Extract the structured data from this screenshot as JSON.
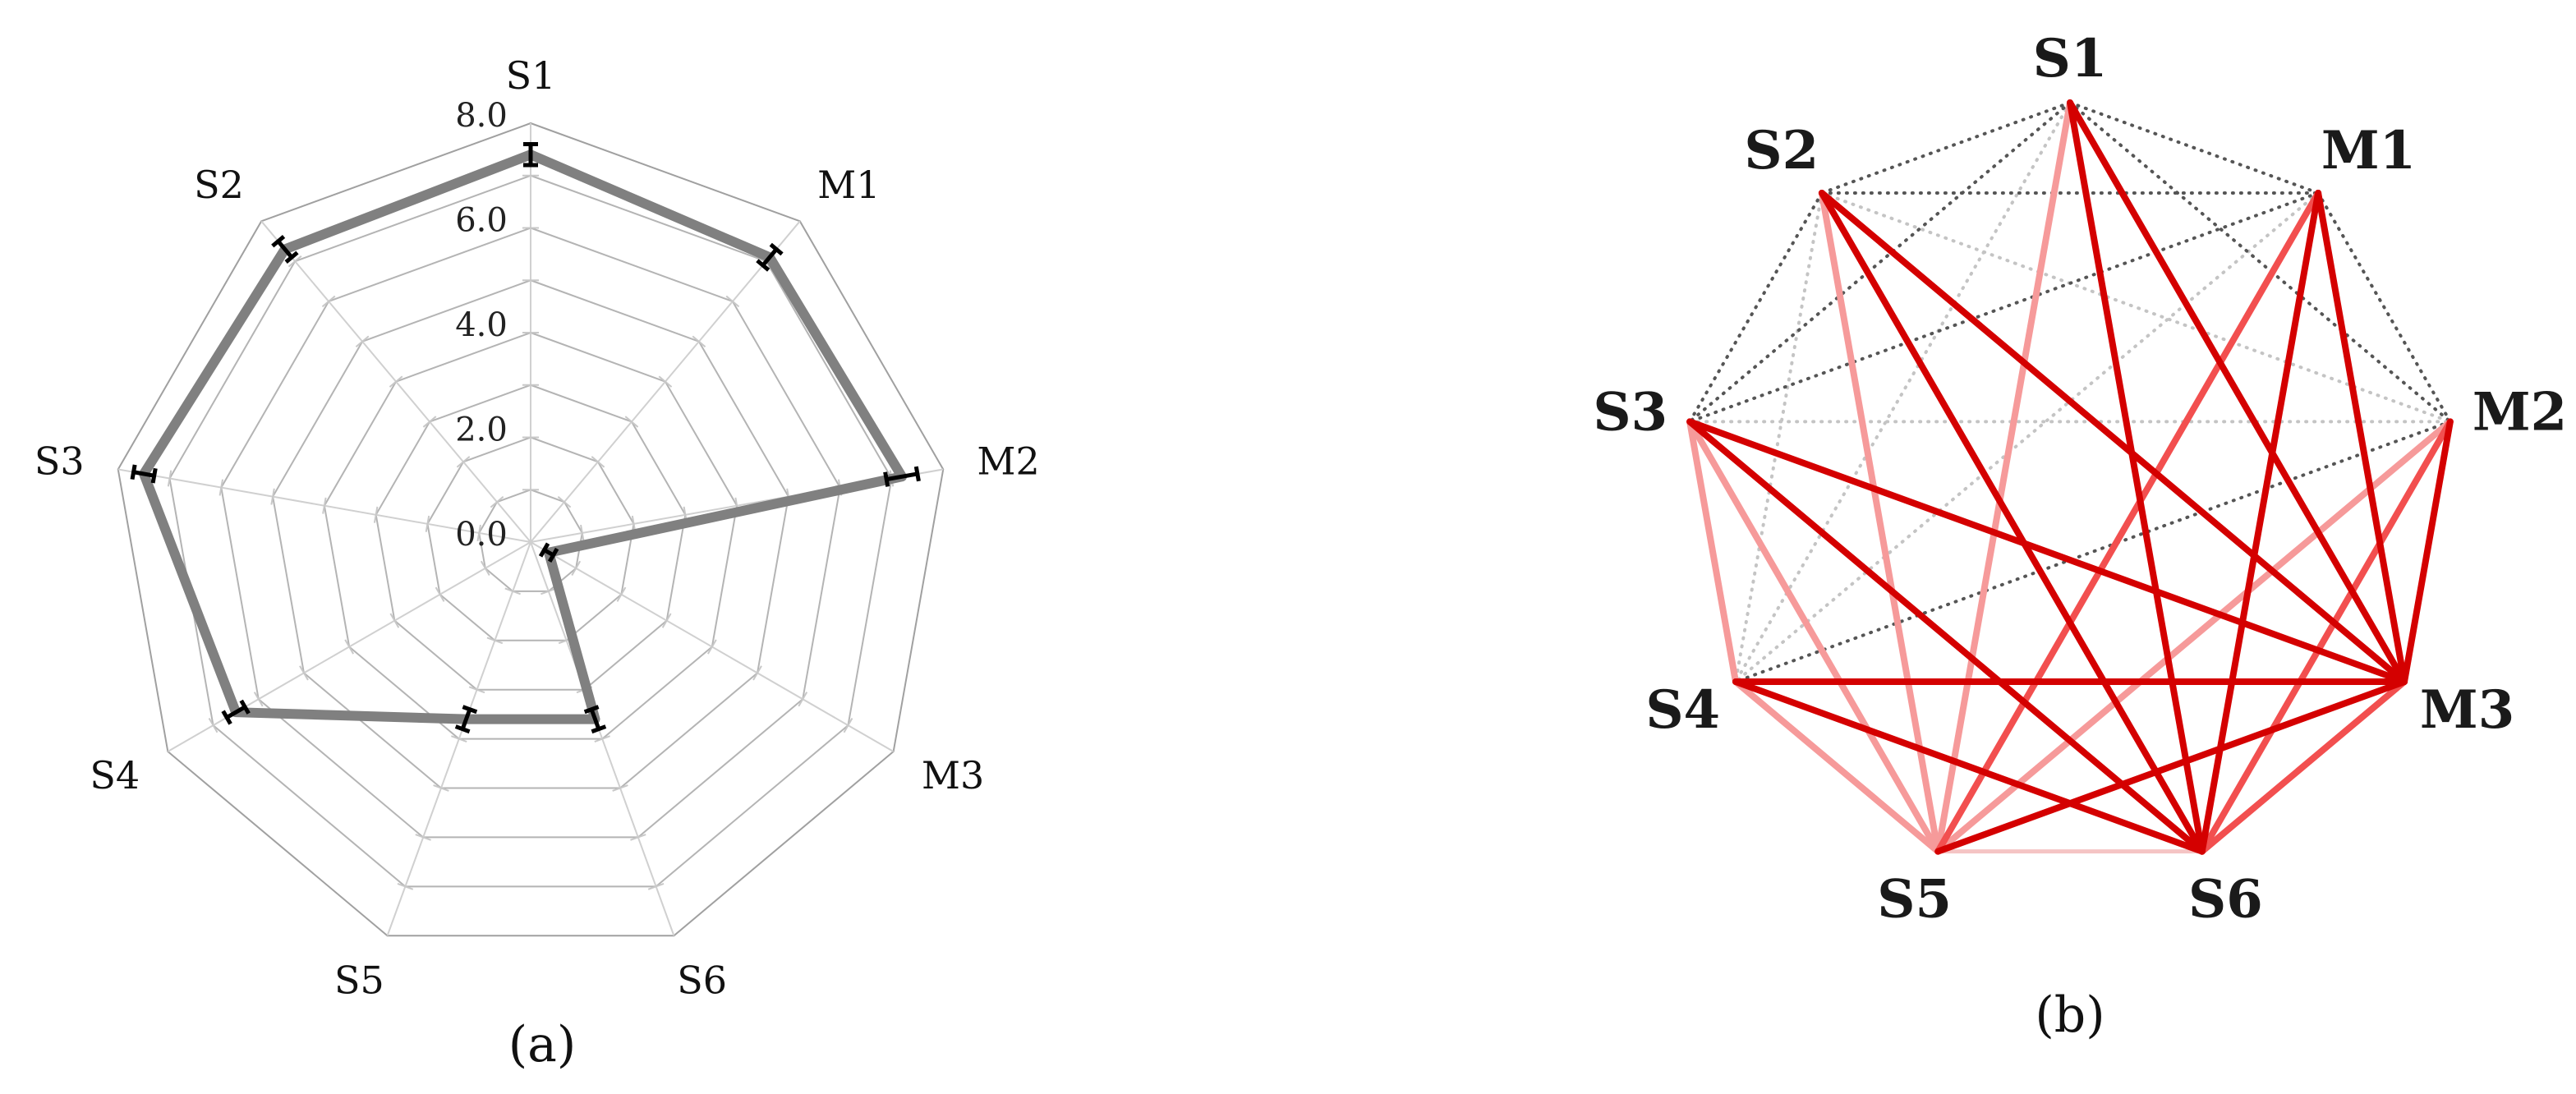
{
  "chart_data": [
    {
      "type": "radar",
      "panel_label": "(a)",
      "axes": [
        "S1",
        "M1",
        "M2",
        "M3",
        "S6",
        "S5",
        "S4",
        "S3",
        "S2"
      ],
      "ylim": [
        0,
        8
      ],
      "ticks": [
        "0.0",
        "2.0",
        "4.0",
        "6.0",
        "8.0"
      ],
      "grid": true,
      "series": [
        {
          "values": [
            7.4,
            7.1,
            7.2,
            0.4,
            3.6,
            3.6,
            6.5,
            7.5,
            7.3
          ],
          "error": [
            0.2,
            0.2,
            0.3,
            0.1,
            0.2,
            0.2,
            0.2,
            0.2,
            0.2
          ],
          "color": "#808080"
        }
      ]
    },
    {
      "type": "network",
      "panel_label": "(b)",
      "nodes": [
        "S1",
        "M1",
        "M2",
        "M3",
        "S6",
        "S5",
        "S4",
        "S3",
        "S2"
      ],
      "edge_colors": {
        "strong": "#d40000",
        "medium": "#f24f4f",
        "weak": "#f69a9a",
        "faint": "#f5c4c4",
        "dotted_dark": "#555555",
        "dotted_light": "#c4c4c4"
      },
      "edges": [
        {
          "from": "S1",
          "to": "M3",
          "style": "strong"
        },
        {
          "from": "S1",
          "to": "S6",
          "style": "strong"
        },
        {
          "from": "S1",
          "to": "S5",
          "style": "weak"
        },
        {
          "from": "S2",
          "to": "M3",
          "style": "strong"
        },
        {
          "from": "S2",
          "to": "S6",
          "style": "strong"
        },
        {
          "from": "S2",
          "to": "S5",
          "style": "weak"
        },
        {
          "from": "M1",
          "to": "M3",
          "style": "strong"
        },
        {
          "from": "M1",
          "to": "S6",
          "style": "strong"
        },
        {
          "from": "M1",
          "to": "S5",
          "style": "medium"
        },
        {
          "from": "S3",
          "to": "M3",
          "style": "strong"
        },
        {
          "from": "S3",
          "to": "S6",
          "style": "strong"
        },
        {
          "from": "S3",
          "to": "S5",
          "style": "weak"
        },
        {
          "from": "S3",
          "to": "S4",
          "style": "weak"
        },
        {
          "from": "M2",
          "to": "M3",
          "style": "strong"
        },
        {
          "from": "M2",
          "to": "S6",
          "style": "medium"
        },
        {
          "from": "M2",
          "to": "S5",
          "style": "weak"
        },
        {
          "from": "S4",
          "to": "M3",
          "style": "strong"
        },
        {
          "from": "S4",
          "to": "S6",
          "style": "strong"
        },
        {
          "from": "S4",
          "to": "S5",
          "style": "weak"
        },
        {
          "from": "M3",
          "to": "S6",
          "style": "medium"
        },
        {
          "from": "M3",
          "to": "S5",
          "style": "strong"
        },
        {
          "from": "S5",
          "to": "S6",
          "style": "faint"
        },
        {
          "from": "S1",
          "to": "S2",
          "style": "dotted_dark"
        },
        {
          "from": "S1",
          "to": "M1",
          "style": "dotted_dark"
        },
        {
          "from": "S1",
          "to": "M2",
          "style": "dotted_dark"
        },
        {
          "from": "S1",
          "to": "S3",
          "style": "dotted_dark"
        },
        {
          "from": "S1",
          "to": "S4",
          "style": "dotted_light"
        },
        {
          "from": "S2",
          "to": "M1",
          "style": "dotted_dark"
        },
        {
          "from": "S2",
          "to": "S3",
          "style": "dotted_dark"
        },
        {
          "from": "S2",
          "to": "M2",
          "style": "dotted_light"
        },
        {
          "from": "S2",
          "to": "S4",
          "style": "dotted_light"
        },
        {
          "from": "M1",
          "to": "M2",
          "style": "dotted_dark"
        },
        {
          "from": "M1",
          "to": "S3",
          "style": "dotted_dark"
        },
        {
          "from": "M1",
          "to": "S4",
          "style": "dotted_light"
        },
        {
          "from": "S3",
          "to": "M2",
          "style": "dotted_light"
        },
        {
          "from": "M2",
          "to": "S4",
          "style": "dotted_dark"
        }
      ]
    }
  ]
}
